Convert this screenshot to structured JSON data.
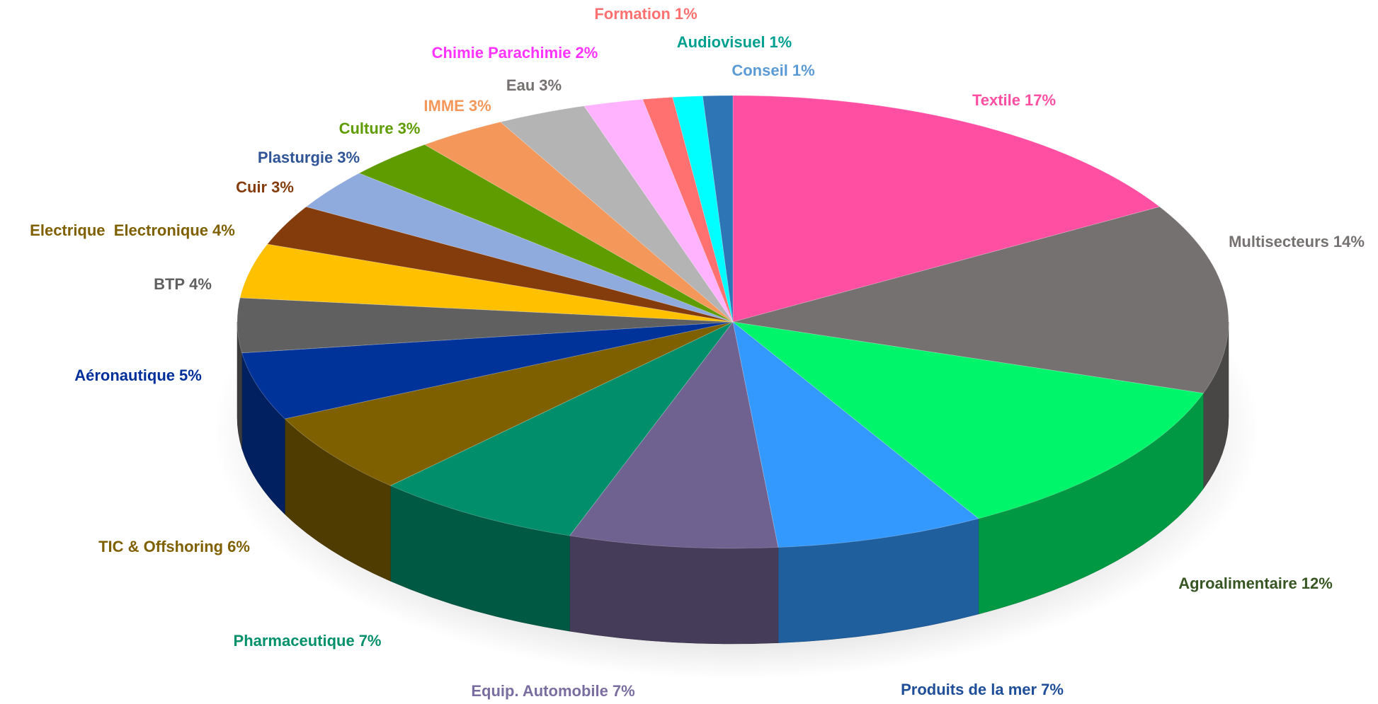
{
  "chart_data": {
    "type": "pie3d",
    "categories": [
      "Textile",
      "Multisecteurs",
      "Agroalimentaire",
      "Produits de la mer",
      "Equip. Automobile",
      "Pharmaceutique",
      "TIC & Offshoring",
      "Aéronautique",
      "BTP",
      "Electrique  Electronique",
      "Cuir",
      "Plasturgie",
      "Culture",
      "IMME",
      "Eau",
      "Chimie Parachimie",
      "Formation",
      "Audiovisuel",
      "Conseil"
    ],
    "values": [
      17,
      14,
      12,
      7,
      7,
      7,
      6,
      5,
      4,
      4,
      3,
      3,
      3,
      3,
      3,
      2,
      1,
      1,
      1
    ],
    "value_labels": [
      "17%",
      "14%",
      "12%",
      "7%",
      "7%",
      "7%",
      "6%",
      "5%",
      "4%",
      "4%",
      "3%",
      "3%",
      "3%",
      "3%",
      "3%",
      "2%",
      "1%",
      "1%",
      "1%"
    ],
    "colors": [
      "#ff4fa3",
      "#767171",
      "#00f56a",
      "#3399ff",
      "#6f6190",
      "#008f6a",
      "#7f6000",
      "#003399",
      "#606060",
      "#ffc000",
      "#843c0c",
      "#8faadc",
      "#5f9c00",
      "#f4975a",
      "#b4b4b4",
      "#ffb3ff",
      "#ff7070",
      "#00ffff",
      "#2e75b6"
    ],
    "label_colors": [
      "#ff4fa3",
      "#767171",
      "#375623",
      "#1f4e99",
      "#7a6ea0",
      "#00906a",
      "#7f6000",
      "#002f9a",
      "#606060",
      "#7f6000",
      "#843c0c",
      "#2f5597",
      "#5f9c00",
      "#f4975a",
      "#767171",
      "#ff33ff",
      "#ff7070",
      "#00a090",
      "#5b9bd5"
    ]
  }
}
